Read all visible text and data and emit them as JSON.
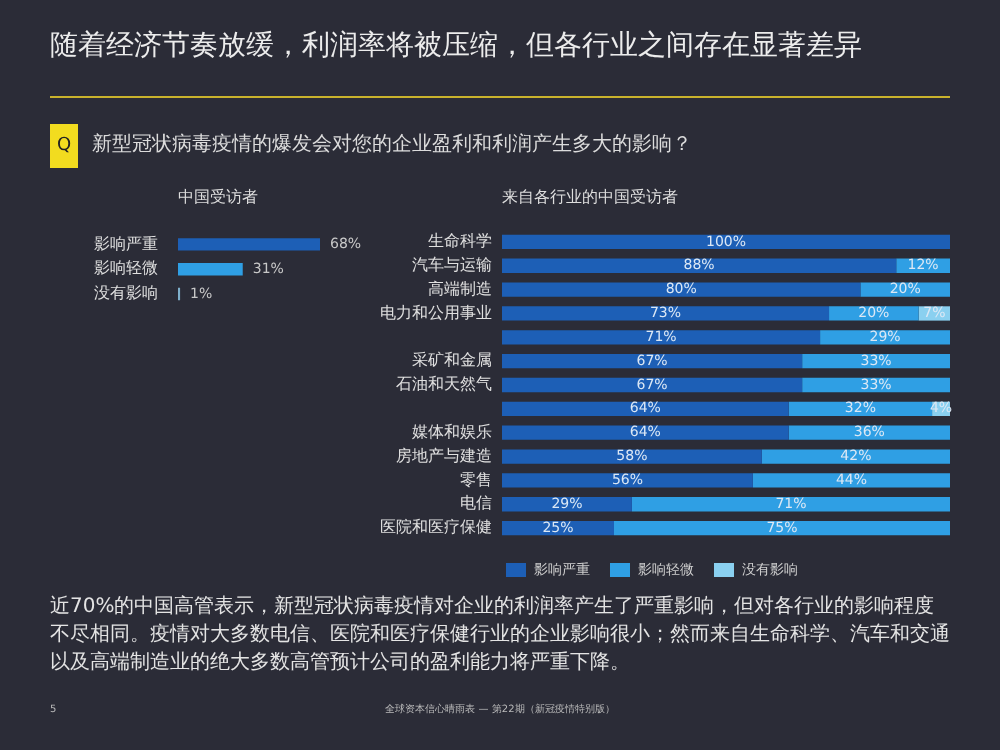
{
  "chart_data": [
    {
      "type": "other",
      "title": "随着经济节奏放缓，利润率将被压缩，但各行业之间存在显著差异",
      "subtitle": "新型冠状病毒疫情的爆发会对您的企业盈利和利润产生多大的影响？",
      "annotations": [
        "Q",
        "近70%的中国高管表示，新型冠状病毒疫情对企业的利润率产生了严重影响，但对各行业的影响程度不尽相同。疫情对大多数电信、医院和医疗保健行业的企业影响很小；然而来自生命科学、汽车和交通以及高端制造业的绝大多数高管预计公司的盈利能力将严重下降。",
        "5",
        "全球资本信心晴雨表 — 第22期（新冠疫情特别版）"
      ]
    },
    {
      "type": "bar",
      "orientation": "horizontal",
      "title": "中国受访者",
      "categories": [
        "影响严重",
        "影响轻微",
        "没有影响"
      ],
      "values": [
        68,
        31,
        1
      ],
      "colors": [
        "#1d5fb6",
        "#2f9fe4",
        "#7fb0cc"
      ],
      "value_labels": [
        "68%",
        "31%",
        "1%"
      ],
      "tick_labels": "y"
    },
    {
      "type": "bar",
      "orientation": "horizontal",
      "stacked": true,
      "title": "来自各行业的中国受访者",
      "categories": [
        "生命科学",
        "汽车与运输",
        "高端制造",
        "电力和公用事业",
        null,
        "采矿和金属",
        "石油和天然气",
        null,
        "媒体和娱乐",
        "房地产与建造",
        "零售",
        "电信",
        "医院和医疗保健"
      ],
      "series": [
        {
          "name": "影响严重",
          "color": "#1d5fb6",
          "values": [
            100,
            88,
            80,
            73,
            71,
            67,
            67,
            64,
            64,
            58,
            56,
            29,
            25
          ],
          "value_labels": [
            "100%",
            "88%",
            "80%",
            "73%",
            "71%",
            "67%",
            "67%",
            "64%",
            "64%",
            "58%",
            "56%",
            "29%",
            "25%"
          ]
        },
        {
          "name": "影响轻微",
          "color": "#2f9fe4",
          "values": [
            null,
            12,
            20,
            20,
            29,
            33,
            33,
            32,
            36,
            42,
            44,
            71,
            75
          ],
          "value_labels": [
            null,
            "12%",
            "20%",
            "20%",
            "29%",
            "33%",
            "33%",
            "32%",
            "36%",
            "42%",
            "44%",
            "71%",
            "75%"
          ]
        },
        {
          "name": "没有影响",
          "color": "#8ad0f0",
          "values": [
            null,
            null,
            null,
            7,
            null,
            null,
            null,
            4,
            null,
            null,
            null,
            null,
            null
          ],
          "value_labels": [
            null,
            null,
            null,
            "7%",
            null,
            null,
            null,
            "4%",
            null,
            null,
            null,
            null,
            null
          ]
        }
      ],
      "tick_labels": "y",
      "legend": "bottom"
    }
  ]
}
